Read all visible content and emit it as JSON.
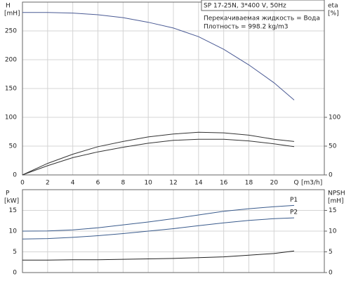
{
  "chart_data": [
    {
      "type": "line",
      "title": "SP 17-25N, 3*400 V, 50Hz",
      "annotations": [
        "Перекачиваемая жидкость = Вода",
        "Плотность = 998.2 kg/m3"
      ],
      "ylabel": "H",
      "yunit": "[mH]",
      "y2label": "eta",
      "y2unit": "[%]",
      "xlabel": "Q",
      "xunit": "[m3/h]",
      "xlim": [
        0,
        24
      ],
      "xticks": [
        0,
        2,
        4,
        6,
        8,
        10,
        12,
        14,
        16,
        18,
        20
      ],
      "ylim": [
        0,
        300
      ],
      "yticks": [
        0,
        50,
        100,
        150,
        200,
        250
      ],
      "y2lim": [
        0,
        300
      ],
      "y2ticks": [
        0,
        50,
        100
      ],
      "grid": true,
      "x": [
        0,
        2,
        4,
        6,
        8,
        10,
        12,
        14,
        16,
        18,
        20,
        21.6
      ],
      "series": [
        {
          "color": "#4a5a94",
          "values": [
            282,
            282,
            281,
            278,
            273,
            265,
            255,
            240,
            218,
            191,
            160,
            130
          ]
        },
        {
          "color": "#333333",
          "axis": "y2",
          "values": [
            0,
            20,
            36,
            49,
            58,
            66,
            71,
            74,
            73,
            69,
            62,
            58
          ]
        },
        {
          "color": "#333333",
          "axis": "y2",
          "values": [
            0,
            16,
            30,
            40,
            48,
            55,
            60,
            62,
            62,
            59,
            54,
            49
          ]
        }
      ]
    },
    {
      "type": "line",
      "ylabel": "P",
      "yunit": "[kW]",
      "y2label": "NPSH",
      "y2unit": "[mH]",
      "xlim": [
        0,
        24
      ],
      "xticks": [
        0,
        2,
        4,
        6,
        8,
        10,
        12,
        14,
        16,
        18,
        20
      ],
      "ylim": [
        0,
        20
      ],
      "yticks": [
        0,
        5,
        10,
        15
      ],
      "y2lim": [
        0,
        20
      ],
      "y2ticks": [
        0,
        5,
        10,
        15
      ],
      "grid": true,
      "x": [
        0,
        2,
        4,
        6,
        8,
        10,
        12,
        14,
        16,
        18,
        20,
        21.6
      ],
      "series": [
        {
          "name": "P1",
          "color": "#3a5b8c",
          "values": [
            10,
            10.05,
            10.3,
            10.8,
            11.5,
            12.2,
            13,
            13.9,
            14.8,
            15.4,
            15.9,
            16.2
          ]
        },
        {
          "name": "P2",
          "color": "#3a5b8c",
          "values": [
            8.1,
            8.2,
            8.5,
            8.9,
            9.4,
            10,
            10.6,
            11.3,
            12,
            12.6,
            13,
            13.2
          ]
        },
        {
          "color": "#222222",
          "axis": "y2",
          "values": [
            3,
            3,
            3.1,
            3.1,
            3.2,
            3.3,
            3.4,
            3.6,
            3.8,
            4.2,
            4.6,
            5.2
          ]
        }
      ]
    }
  ]
}
